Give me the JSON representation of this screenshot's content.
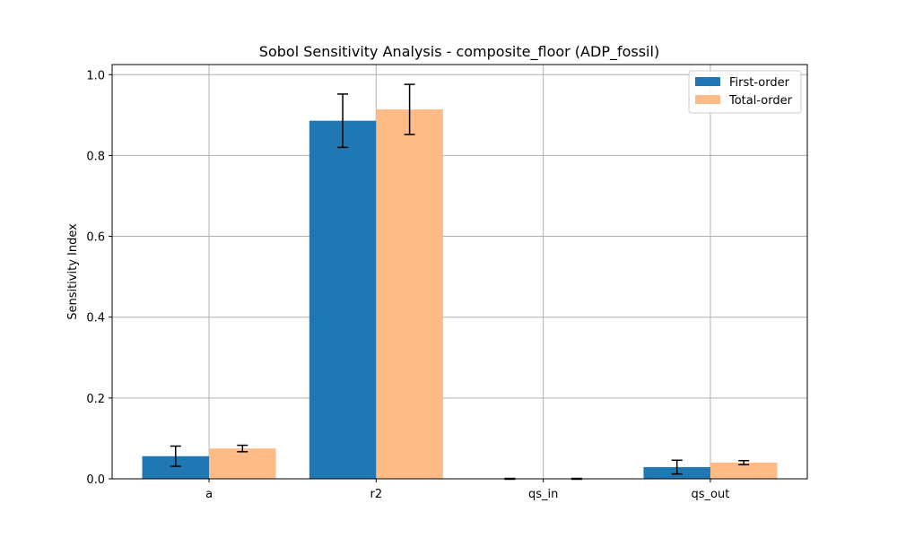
{
  "chart_data": {
    "type": "bar",
    "title": "Sobol Sensitivity Analysis - composite_floor (ADP_fossil)",
    "xlabel": "",
    "ylabel": "Sensitivity Index",
    "categories": [
      "a",
      "r2",
      "qs_in",
      "qs_out"
    ],
    "ylim": [
      0,
      1.025
    ],
    "yticks": [
      0.0,
      0.2,
      0.4,
      0.6,
      0.8,
      1.0
    ],
    "ytick_labels": [
      "0.0",
      "0.2",
      "0.4",
      "0.6",
      "0.8",
      "1.0"
    ],
    "grid": true,
    "legend_position": "top-right",
    "series": [
      {
        "name": "First-order",
        "color": "#1f77b4",
        "values": [
          0.056,
          0.886,
          0.0,
          0.029
        ],
        "errors": [
          0.025,
          0.066,
          0.001,
          0.017
        ]
      },
      {
        "name": "Total-order",
        "color": "#ffbb85",
        "values": [
          0.075,
          0.914,
          0.0,
          0.04
        ],
        "errors": [
          0.008,
          0.062,
          0.001,
          0.005
        ]
      }
    ]
  }
}
